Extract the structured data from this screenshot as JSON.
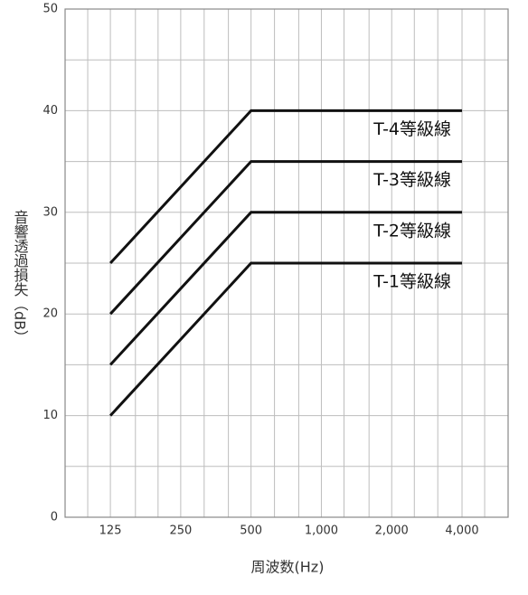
{
  "chart_data": {
    "type": "line",
    "x_label": "周波数(Hz)",
    "y_label": "音響透過損失（dB）",
    "log_x": true,
    "xlim": [
      80,
      6300
    ],
    "xticks": [
      125,
      250,
      500,
      {
        "value": 1000,
        "label": "1,000"
      },
      {
        "value": 2000,
        "label": "2,000"
      },
      {
        "value": 4000,
        "label": "4,000"
      }
    ],
    "xgrid": [
      100,
      160,
      200,
      315,
      400,
      630,
      800,
      1250,
      1600,
      2500,
      3150,
      5000
    ],
    "ylim": [
      0,
      50
    ],
    "yticks": [
      0,
      10,
      20,
      30,
      40,
      50
    ],
    "ygrid": [
      5,
      15,
      25,
      35,
      45
    ],
    "grid": true,
    "x": [
      125,
      500,
      4000
    ],
    "series": [
      {
        "name": "T-4等級線",
        "color": "#111111",
        "values": [
          25,
          40,
          40
        ]
      },
      {
        "name": "T-3等級線",
        "color": "#111111",
        "values": [
          20,
          35,
          35
        ]
      },
      {
        "name": "T-2等級線",
        "color": "#111111",
        "values": [
          15,
          30,
          30
        ]
      },
      {
        "name": "T-1等級線",
        "color": "#111111",
        "values": [
          10,
          25,
          25
        ]
      }
    ]
  }
}
